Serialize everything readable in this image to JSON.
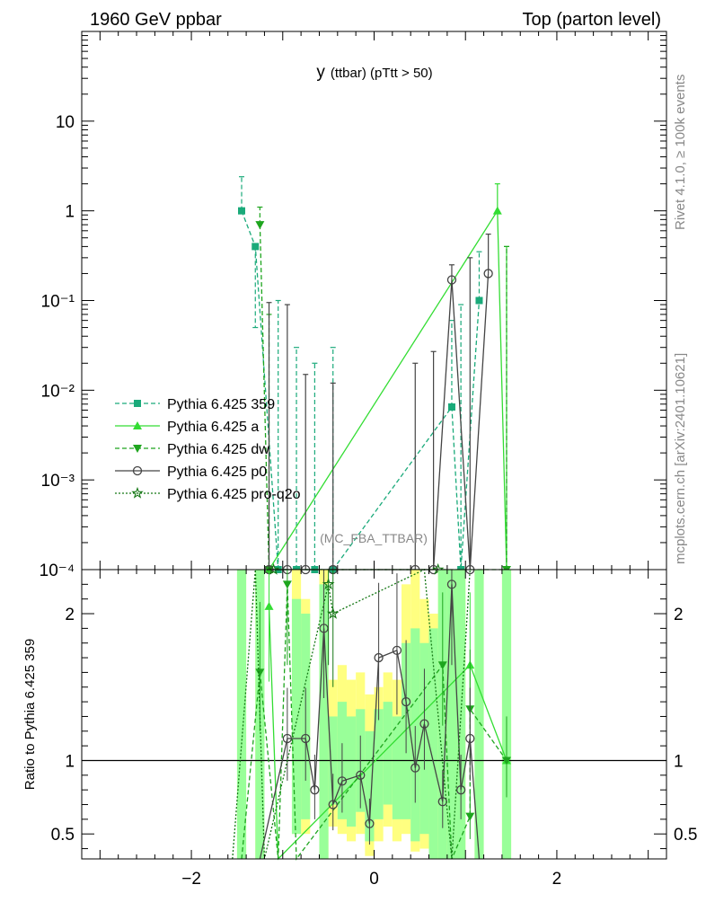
{
  "header": {
    "left": "1960 GeV ppbar",
    "right": "Top (parton level)"
  },
  "side_text": {
    "rivet": "Rivet 4.1.0, ≥ 100k events",
    "source": "mcplots.cern.ch [arXiv:2401.10621]"
  },
  "analysis_tag": "(MC_FBA_TTBAR)",
  "chart_data": [
    {
      "type": "line",
      "title": "y",
      "title_sub": "(ttbar)  (pTtt > 50)",
      "y_scale": "log",
      "xlim": [
        -3.2,
        3.2
      ],
      "ylim": [
        0.0001,
        100
      ],
      "x_ticks": [
        "−2",
        "0",
        "2"
      ],
      "y_ticks": [
        "10",
        "1",
        "10⁻¹",
        "10⁻²",
        "10⁻³",
        "10⁻⁴"
      ],
      "legend_position": "left-middle",
      "series": [
        {
          "name": "Pythia 6.425 359",
          "color": "#1aaa7a",
          "marker": "square",
          "dash": "dashed",
          "points": [
            [
              -1.45,
              1.0,
              2.4
            ],
            [
              -1.3,
              0.4,
              0.05
            ],
            [
              -1.05,
              0.0001,
              0.1
            ],
            [
              -0.85,
              0.0001,
              0.03
            ],
            [
              -0.65,
              0.0001,
              0.02
            ],
            [
              -0.45,
              0.0001,
              0.03
            ],
            [
              0.85,
              0.0065,
              0.06
            ],
            [
              0.95,
              0.0001,
              0.09
            ],
            [
              1.15,
              0.1,
              0.35
            ]
          ]
        },
        {
          "name": "Pythia 6.425 a",
          "color": "#33dd33",
          "marker": "triangle-up",
          "dash": "solid",
          "points": [
            [
              -1.15,
              0.0001,
              0
            ],
            [
              1.35,
              1.0,
              2.0
            ],
            [
              1.45,
              0.0001,
              0.4
            ]
          ]
        },
        {
          "name": "Pythia 6.425 dw",
          "color": "#1ea51e",
          "marker": "triangle-down",
          "dash": "dashed",
          "points": [
            [
              -1.25,
              0.7,
              1.1
            ],
            [
              -1.15,
              0.0001,
              0.07
            ],
            [
              1.45,
              0.0001,
              0.4
            ]
          ]
        },
        {
          "name": "Pythia 6.425 p0",
          "color": "#444444",
          "marker": "circle",
          "dash": "solid",
          "points": [
            [
              -1.15,
              0.0001,
              0.095
            ],
            [
              -0.95,
              0.0001,
              0.09
            ],
            [
              -0.75,
              0.0001,
              0.015
            ],
            [
              -0.45,
              0.0001,
              0.012
            ],
            [
              0.45,
              0.0001,
              0.02
            ],
            [
              0.65,
              0.0001,
              0.027
            ],
            [
              0.85,
              0.17,
              0.25
            ],
            [
              1.05,
              0.0001,
              0.3
            ],
            [
              1.25,
              0.2,
              0.55
            ]
          ]
        },
        {
          "name": "Pythia 6.425 pro-q2o",
          "color": "#157715",
          "marker": "star",
          "dash": "dotted",
          "points": [
            [
              -1.1,
              0.0001,
              0
            ],
            [
              0.7,
              0.0001,
              0
            ]
          ]
        }
      ]
    },
    {
      "type": "line",
      "ylabel": "Ratio to Pythia 6.425 359",
      "xlim": [
        -3.2,
        3.2
      ],
      "ylim": [
        0.33,
        2.3
      ],
      "reference_line": 1,
      "x_ticks": [
        "−2",
        "0",
        "2"
      ],
      "y_ticks": [
        "2",
        "1",
        "0.5"
      ],
      "bands": {
        "outer_color": "#ffff80",
        "inner_color": "#99ff99",
        "bins": [
          [
            -1.5,
            -1.4,
            0.33,
            2.3,
            0.33,
            2.3
          ],
          [
            -1.3,
            -1.2,
            0.33,
            2.3,
            0.33,
            2.3
          ],
          [
            -0.9,
            -0.8,
            0.5,
            2.3,
            0.5,
            2.1
          ],
          [
            -0.8,
            -0.7,
            0.5,
            2.1,
            0.6,
            2.0
          ],
          [
            -0.6,
            -0.5,
            0.33,
            2.3,
            0.33,
            2.2
          ],
          [
            -0.5,
            -0.4,
            0.55,
            1.55,
            0.7,
            1.3
          ],
          [
            -0.4,
            -0.3,
            0.5,
            1.65,
            0.6,
            1.4
          ],
          [
            -0.3,
            -0.2,
            0.45,
            1.55,
            0.55,
            1.3
          ],
          [
            -0.2,
            -0.1,
            0.5,
            1.6,
            0.65,
            1.35
          ],
          [
            -0.1,
            0.0,
            0.35,
            1.45,
            0.45,
            1.2
          ],
          [
            0.0,
            0.1,
            0.45,
            1.5,
            0.6,
            1.35
          ],
          [
            0.1,
            0.2,
            0.55,
            1.6,
            0.7,
            1.4
          ],
          [
            0.2,
            0.3,
            0.45,
            1.55,
            0.6,
            1.3
          ],
          [
            0.3,
            0.4,
            0.5,
            2.2,
            0.6,
            1.8
          ],
          [
            0.4,
            0.5,
            0.38,
            2.3,
            0.45,
            1.9
          ],
          [
            0.5,
            0.6,
            0.4,
            2.1,
            0.5,
            1.8
          ],
          [
            0.6,
            0.7,
            0.33,
            2.0,
            0.33,
            1.9
          ],
          [
            0.7,
            0.8,
            0.33,
            2.3,
            0.33,
            2.3
          ],
          [
            0.8,
            0.9,
            0.33,
            2.3,
            0.33,
            2.3
          ],
          [
            0.9,
            1.0,
            0.33,
            2.3,
            0.33,
            2.3
          ],
          [
            1.1,
            1.2,
            0.33,
            2.3,
            0.33,
            2.3
          ],
          [
            1.4,
            1.5,
            0.33,
            2.3,
            0.33,
            2.3
          ]
        ]
      },
      "series": [
        {
          "name": "Pythia 6.425 a",
          "color": "#33dd33",
          "marker": "triangle-up",
          "dash": "solid",
          "points": [
            [
              -1.15,
              2.05
            ],
            [
              -1.05,
              0.33
            ],
            [
              1.05,
              1.65
            ],
            [
              1.45,
              1.0
            ]
          ]
        },
        {
          "name": "Pythia 6.425 dw",
          "color": "#1ea51e",
          "marker": "triangle-down",
          "dash": "dashed",
          "points": [
            [
              -1.45,
              0.33
            ],
            [
              -1.25,
              1.6
            ],
            [
              -1.05,
              0.33
            ],
            [
              -0.95,
              2.2
            ],
            [
              -0.85,
              0.33
            ],
            [
              0.75,
              1.65
            ],
            [
              0.85,
              0.33
            ],
            [
              1.05,
              0.62
            ],
            [
              1.05,
              1.35
            ],
            [
              1.45,
              1.0
            ]
          ]
        },
        {
          "name": "Pythia 6.425 p0",
          "color": "#444444",
          "marker": "circle",
          "dash": "solid",
          "points": [
            [
              -1.25,
              0.33
            ],
            [
              -0.95,
              1.15
            ],
            [
              -0.75,
              1.15
            ],
            [
              -0.65,
              0.8
            ],
            [
              -0.55,
              1.9
            ],
            [
              -0.45,
              0.7
            ],
            [
              -0.35,
              0.86
            ],
            [
              -0.15,
              0.9
            ],
            [
              -0.05,
              0.57
            ],
            [
              0.05,
              1.7
            ],
            [
              0.25,
              1.75
            ],
            [
              0.35,
              1.4
            ],
            [
              0.45,
              0.95
            ],
            [
              0.55,
              1.25
            ],
            [
              0.75,
              0.72
            ],
            [
              0.85,
              2.2
            ],
            [
              0.95,
              0.8
            ],
            [
              1.05,
              1.15
            ],
            [
              1.15,
              0.33
            ]
          ]
        },
        {
          "name": "Pythia 6.425 pro-q2o",
          "color": "#157715",
          "marker": "star",
          "dash": "dotted",
          "points": [
            [
              -1.55,
              0.33
            ],
            [
              -1.3,
              2.3
            ],
            [
              -1.2,
              0.33
            ],
            [
              -0.5,
              2.2
            ],
            [
              -0.45,
              2.0
            ],
            [
              0.55,
              2.3
            ],
            [
              0.85,
              0.33
            ],
            [
              1.05,
              2.3
            ]
          ]
        }
      ]
    }
  ]
}
